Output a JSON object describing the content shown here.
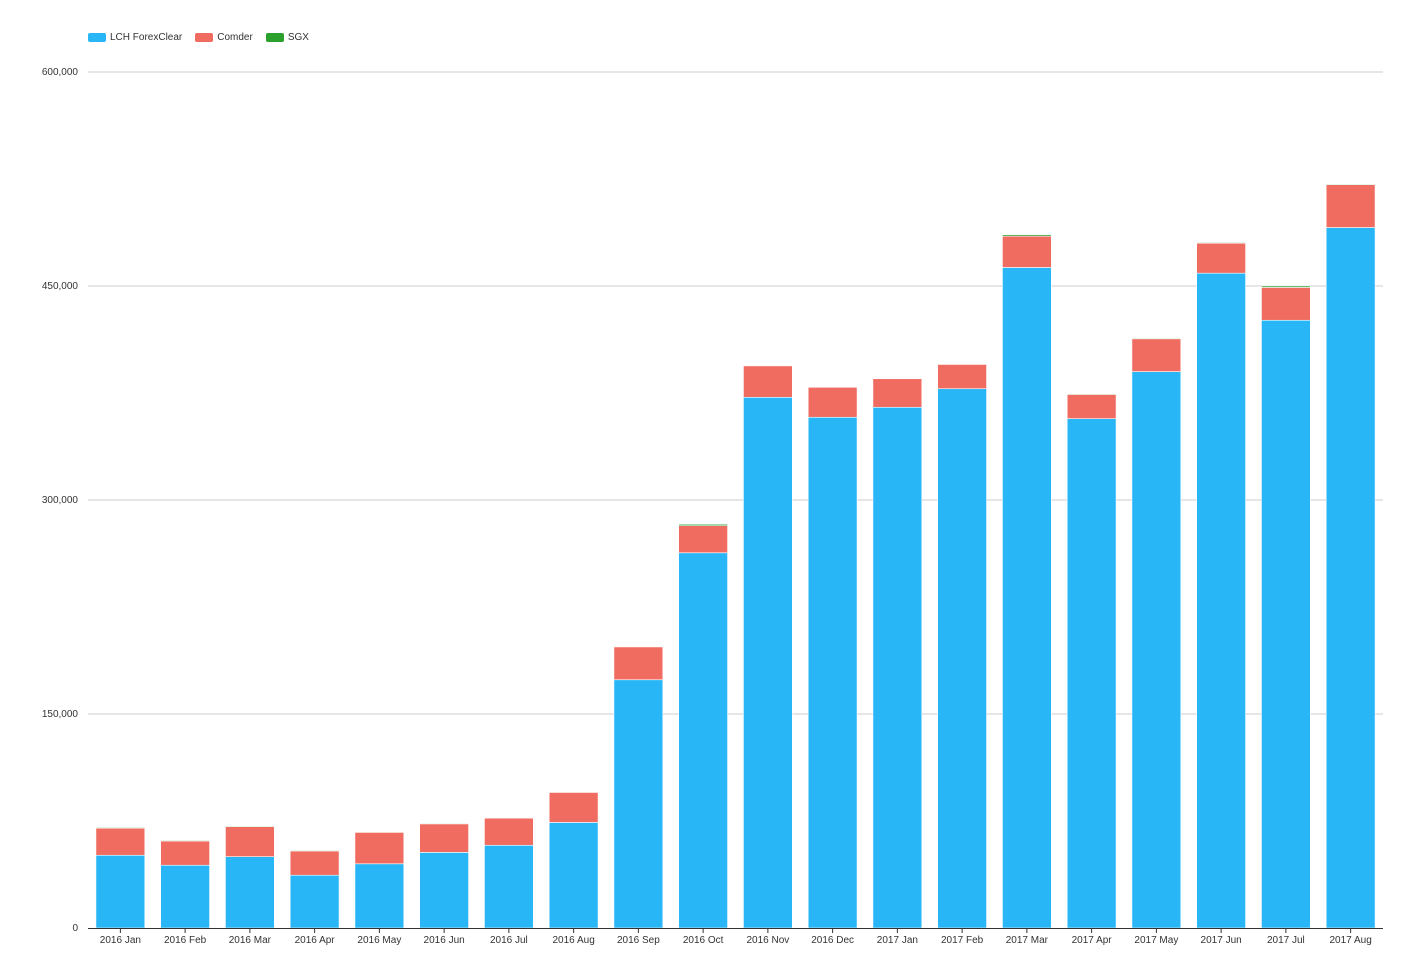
{
  "chart_data": {
    "type": "bar",
    "stacked": true,
    "categories": [
      "2016 Jan",
      "2016 Feb",
      "2016 Mar",
      "2016 Apr",
      "2016 May",
      "2016 Jun",
      "2016 Jul",
      "2016 Aug",
      "2016 Sep",
      "2016 Oct",
      "2016 Nov",
      "2016 Dec",
      "2017 Jan",
      "2017 Feb",
      "2017 Mar",
      "2017 Apr",
      "2017 May",
      "2017 Jun",
      "2017 Jul",
      "2017 Aug"
    ],
    "series": [
      {
        "name": "LCH ForexClear",
        "color": "#29b6f6",
        "values": [
          51000,
          44000,
          50000,
          37000,
          45000,
          53000,
          58000,
          74000,
          174000,
          263000,
          372000,
          358000,
          365000,
          378000,
          463000,
          357000,
          390000,
          459000,
          426000,
          491000
        ]
      },
      {
        "name": "Comder",
        "color": "#f06c60",
        "values": [
          19000,
          17000,
          21000,
          17000,
          22000,
          20000,
          19000,
          21000,
          23000,
          19000,
          22000,
          21000,
          20000,
          17000,
          22000,
          17000,
          23000,
          21000,
          23000,
          30000
        ]
      },
      {
        "name": "SGX",
        "color": "#2ca02c",
        "values": [
          500,
          500,
          500,
          500,
          0,
          500,
          0,
          0,
          0,
          1000,
          0,
          0,
          0,
          0,
          1000,
          500,
          500,
          500,
          1000,
          500
        ]
      }
    ],
    "yticks": [
      0,
      150000,
      300000,
      450000,
      600000
    ],
    "ytick_labels": [
      "0",
      "150,000",
      "300,000",
      "450,000",
      "600,000"
    ],
    "ylim": [
      0,
      600000
    ],
    "grid": true,
    "legend_position": "top-left",
    "title": "",
    "xlabel": "",
    "ylabel": ""
  }
}
